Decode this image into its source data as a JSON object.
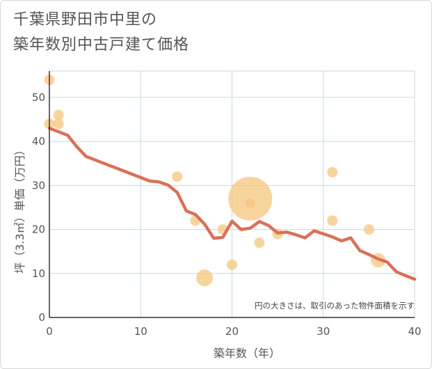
{
  "chart_data": {
    "type": "scatter",
    "title_lines": [
      "千葉県野田市中里の",
      "築年数別中古戸建て価格"
    ],
    "xlabel": "築年数（年）",
    "ylabel": "坪（3.3㎡）単価（万円）",
    "xlim": [
      0,
      40
    ],
    "ylim": [
      0,
      56
    ],
    "xticks": [
      0,
      10,
      20,
      30,
      40
    ],
    "yticks": [
      0,
      10,
      20,
      30,
      40,
      50
    ],
    "grid": true,
    "note": "円の大きさは、取引のあった物件面積を示す",
    "colors": {
      "points": "#f5c67c",
      "line": "#d9705a",
      "grid": "#c8d6e3"
    },
    "points": [
      {
        "x": 0,
        "y": 54,
        "size": 1
      },
      {
        "x": 0,
        "y": 44,
        "size": 1
      },
      {
        "x": 1,
        "y": 46,
        "size": 1
      },
      {
        "x": 1,
        "y": 44,
        "size": 1
      },
      {
        "x": 14,
        "y": 32,
        "size": 1
      },
      {
        "x": 16,
        "y": 22,
        "size": 1
      },
      {
        "x": 17,
        "y": 9,
        "size": 1.6
      },
      {
        "x": 19,
        "y": 20,
        "size": 1
      },
      {
        "x": 20,
        "y": 12,
        "size": 1
      },
      {
        "x": 22,
        "y": 27,
        "size": 4.2
      },
      {
        "x": 22,
        "y": 26,
        "size": 0.9
      },
      {
        "x": 23,
        "y": 17,
        "size": 1
      },
      {
        "x": 25,
        "y": 19,
        "size": 1
      },
      {
        "x": 31,
        "y": 33,
        "size": 1
      },
      {
        "x": 31,
        "y": 22,
        "size": 1
      },
      {
        "x": 35,
        "y": 20,
        "size": 1
      },
      {
        "x": 36,
        "y": 13,
        "size": 1.4
      }
    ],
    "trend": {
      "x": [
        0,
        1,
        2,
        3,
        4,
        5,
        6,
        7,
        8,
        9,
        10,
        11,
        12,
        13,
        14,
        15,
        16,
        17,
        18,
        19,
        20,
        21,
        22,
        23,
        24,
        25,
        26,
        27,
        28,
        29,
        30,
        31,
        32,
        33,
        34,
        35,
        36,
        37,
        38,
        39,
        40
      ],
      "y": [
        43,
        42.2,
        41.4,
        38.8,
        36.6,
        35.8,
        35,
        34.2,
        33.4,
        32.6,
        31.8,
        31,
        30.8,
        30.1,
        28.4,
        24.2,
        23.4,
        21.2,
        18,
        18.2,
        21.9,
        20,
        20.3,
        21.8,
        20.9,
        19.2,
        19.4,
        18.8,
        18.1,
        19.7,
        19,
        18.3,
        17.4,
        18.1,
        15.2,
        14.3,
        13.3,
        12.6,
        10.4,
        9.5,
        8.7
      ]
    }
  }
}
